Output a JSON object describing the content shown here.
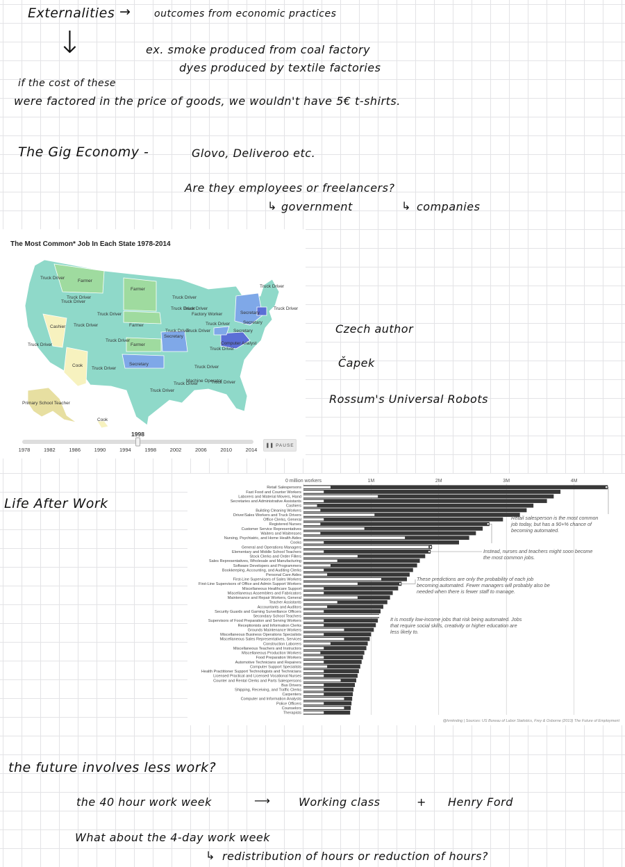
{
  "notes": {
    "externalities": {
      "term": "Externalities",
      "arrow": "→",
      "definition": "outcomes from economic practices",
      "down_arrow": "↓",
      "example_1": "ex. smoke produced from coal factory",
      "example_2": "dyes produced by textile factories",
      "if_line_1": "if the cost of these",
      "if_line_2": "were factored in the price of goods, we wouldn't have 5€ t-shirts."
    },
    "gig": {
      "heading": "The Gig Economy -",
      "examples": "Glovo, Deliveroo etc.",
      "question": "Are they employees or freelancers?",
      "branch_1_arrow": "↳",
      "branch_1": "government",
      "branch_2_arrow": "↳",
      "branch_2": "companies"
    },
    "capek": {
      "line_1": "Czech author",
      "line_2": "Čapek",
      "line_3": "Rossum's Universal Robots"
    },
    "life_after_work": "Life After Work",
    "future": {
      "question": "the future involves less work?",
      "line_1": "the 40 hour work week",
      "line_1_arrow": "⟶",
      "line_1_a": "Working class",
      "line_1_plus": "+",
      "line_1_b": "Henry Ford",
      "line_2": "What about the 4-day work week",
      "line_3_arrow": "↳",
      "line_3": "redistribution of hours or reduction of hours?"
    }
  },
  "map": {
    "title": "The Most Common* Job In Each State 1978-2014",
    "slider_year": "1998",
    "slider_position": 0.5,
    "years": [
      "1978",
      "1982",
      "1986",
      "1990",
      "1994",
      "1998",
      "2002",
      "2006",
      "2010",
      "2014"
    ],
    "pause_label": "PAUSE",
    "colors": {
      "truck_driver": "#8fd9c9",
      "farmer": "#9fdb9f",
      "cashier": "#f7f2bf",
      "secretary": "#7fa8e8",
      "teacher": "#e7dfa1",
      "computer_analyst": "#5b6fd6"
    },
    "labels": [
      "Truck Driver",
      "Farmer",
      "Farmer",
      "Truck Driver",
      "Truck Driver",
      "Truck Driver",
      "Truck Driver",
      "Cashier",
      "Truck Driver",
      "Farmer",
      "Truck Driver",
      "Truck Driver",
      "Truck Driver",
      "Farmer",
      "Secretary",
      "Truck Driver",
      "Cook",
      "Truck Driver",
      "Secretary",
      "Truck Driver",
      "Truck Driver",
      "Machine Operator",
      "Truck Driver",
      "Truck Driver",
      "Truck Driver",
      "Factory Worker",
      "Truck Driver",
      "Secretary",
      "Secretary",
      "Computer Analyst",
      "Truck Driver",
      "Secretary",
      "Truck Driver",
      "Truck Driver",
      "Truck Driver",
      "Primary School Teacher",
      "Cook"
    ]
  },
  "chart_data": {
    "type": "bar",
    "axis_ticks": [
      "0 million workers",
      "1M",
      "2M",
      "3M",
      "4M"
    ],
    "xlim": [
      0,
      4.6
    ],
    "categories": [
      "Retail Salespersons",
      "Fast Food and Counter Workers",
      "Laborers and Material Movers, Hand",
      "Secretaries and Administrative Assistants",
      "Cashiers",
      "Building Cleaning Workers",
      "Driver/Sales Workers and Truck Drivers",
      "Office Clerks, General",
      "Registered Nurses",
      "Customer Service Representatives",
      "Waiters and Waitresses",
      "Nursing, Psychiatric, and Home Health Aides",
      "Cooks",
      "General and Operations Managers",
      "Elementary and Middle School Teachers",
      "Stock Clerks and Order Fillers",
      "Sales Representatives, Wholesale and Manufacturing",
      "Software Developers and Programmers",
      "Bookkeeping, Accounting, and Auditing Clerks",
      "Personal Care Aides",
      "First-Line Supervisors of Sales Workers",
      "First-Line Supervisors of Office and Admin Support Workers",
      "Miscellaneous Healthcare Support",
      "Miscellaneous Assemblers and Fabricators",
      "Maintenance and Repair Workers, General",
      "Teacher Assistants",
      "Accountants and Auditors",
      "Security Guards and Gaming Surveillance Officers",
      "Secondary School Teachers",
      "Supervisors of Food Preparation and Serving Workers",
      "Receptionists and Information Clerks",
      "Grounds Maintenance Workers",
      "Miscellaneous Business Operations Specialists",
      "Miscellaneous Sales Representatives, Services",
      "Construction Laborers",
      "Miscellaneous Teachers and Instructors",
      "Miscellaneous Production Workers",
      "Food Preparation Workers",
      "Automotive Technicians and Repairers",
      "Computer Support Specialists",
      "Health Practitioner Support Technologists and Technicians",
      "Licensed Practical and Licensed Vocational Nurses",
      "Counter and Rental Clerks and Parts Salespersons",
      "Bus Drivers",
      "Shipping, Receiving, and Traffic Clerks",
      "Carpenters",
      "Computer and Information Analysts",
      "Police Officers",
      "Counselors",
      "Therapists"
    ],
    "series": [
      {
        "values": [
          4.5,
          3.8,
          3.7,
          3.6,
          3.4,
          3.3,
          3.2,
          2.95,
          2.75,
          2.65,
          2.55,
          2.45,
          2.3,
          1.9,
          1.88,
          1.8,
          1.72,
          1.68,
          1.62,
          1.57,
          1.53,
          1.45,
          1.4,
          1.32,
          1.28,
          1.24,
          1.18,
          1.14,
          1.12,
          1.1,
          1.07,
          1.04,
          1.0,
          0.98,
          0.95,
          0.93,
          0.9,
          0.88,
          0.86,
          0.84,
          0.82,
          0.8,
          0.78,
          0.76,
          0.74,
          0.73,
          0.72,
          0.71,
          0.7,
          0.69
        ]
      },
      {
        "values": [
          0.4,
          0.3,
          1.1,
          0.3,
          0.2,
          0.25,
          1.05,
          0.3,
          0.25,
          0.9,
          0.25,
          1.5,
          0.3,
          1.85,
          0.3,
          0.8,
          0.5,
          0.4,
          0.3,
          0.35,
          1.15,
          0.8,
          0.3,
          0.3,
          0.8,
          0.5,
          0.35,
          0.3,
          1.15,
          0.3,
          0.3,
          0.6,
          0.3,
          0.6,
          0.4,
          0.3,
          0.25,
          0.3,
          0.3,
          0.35,
          0.3,
          0.3,
          0.55,
          0.3,
          0.3,
          0.3,
          0.6,
          0.3,
          0.6,
          0.3
        ]
      }
    ],
    "highlights": [
      0,
      8,
      13,
      14,
      21
    ],
    "annotations": [
      "Retail salesperson is the most common job today, but has a 90+% chance of becoming automated.",
      "Instead, nurses and teachers might soon become the most common jobs.",
      "These predictions are only the probability of each job becoming automated. Fewer managers will probably also be needed when there is fewer staff to manage.",
      "It is mostly low-income jobs that risk being automated. Jobs that require social skills, creativity or higher education are less likely to."
    ],
    "source": "@hrnkndng | Sources: US Bureau of Labor Statistics, Frey & Osborne (2013) The Future of Employment",
    "colors": {
      "dark": "#383838",
      "light": "#ffffff"
    }
  }
}
